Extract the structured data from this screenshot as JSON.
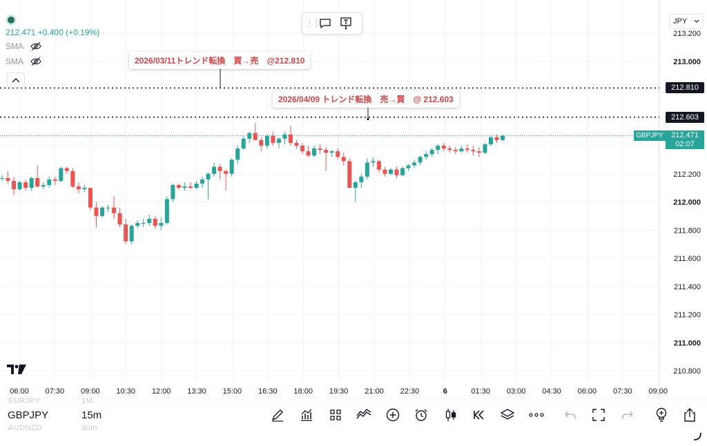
{
  "symbol": "GBPJPY",
  "header": {
    "price_change": "212.471 +0.400 (+0.19%)",
    "indicators": [
      {
        "label": "SMA",
        "icon": "eye-off-icon"
      },
      {
        "label": "SMA",
        "icon": "eye-off-icon"
      }
    ]
  },
  "currency": {
    "value": "JPY"
  },
  "annotations": [
    {
      "text": "2026/03/11トレンド転換　買→売　@212.810",
      "price": 212.81
    },
    {
      "text": "2026/04/09 トレンド転換　売→買　@ 212.603",
      "price": 212.603
    }
  ],
  "price_tags": {
    "line1": "212.810",
    "line2": "212.603",
    "current_symbol": "GBPJPY",
    "current_price": "212.471",
    "countdown": "02:07"
  },
  "chart_data": {
    "type": "candlestick",
    "interval": "15m",
    "y_ticks": [
      "213.200",
      "213.000",
      "212.800",
      "212.600",
      "212.400",
      "212.200",
      "212.000",
      "211.800",
      "211.600",
      "211.400",
      "211.200",
      "211.000",
      "210.800"
    ],
    "y_bold": [
      "213.000",
      "212.000",
      "211.000"
    ],
    "ylim": [
      210.76,
      213.29
    ],
    "x_ticks": [
      "06:00",
      "07:30",
      "09:00",
      "10:30",
      "12:00",
      "13:30",
      "15:00",
      "16:30",
      "18:00",
      "19:30",
      "21:00",
      "22:30",
      "6",
      "01:30",
      "03:00",
      "04:30",
      "06:00",
      "07:30",
      "09:00"
    ],
    "x_bold": [
      "6"
    ],
    "candles": [
      [
        212.17,
        212.19,
        212.15,
        212.17
      ],
      [
        212.17,
        212.22,
        212.13,
        212.15
      ],
      [
        212.15,
        212.18,
        212.05,
        212.09
      ],
      [
        212.09,
        212.15,
        212.08,
        212.14
      ],
      [
        212.14,
        212.16,
        212.08,
        212.1
      ],
      [
        212.1,
        212.18,
        212.08,
        212.17
      ],
      [
        212.17,
        212.26,
        212.1,
        212.11
      ],
      [
        212.11,
        212.14,
        212.09,
        212.12
      ],
      [
        212.12,
        212.18,
        212.1,
        212.16
      ],
      [
        212.16,
        212.18,
        212.12,
        212.15
      ],
      [
        212.15,
        212.25,
        212.14,
        212.24
      ],
      [
        212.24,
        212.25,
        212.2,
        212.22
      ],
      [
        212.22,
        212.24,
        212.1,
        212.11
      ],
      [
        212.11,
        212.14,
        212.06,
        212.09
      ],
      [
        212.09,
        212.12,
        212.07,
        212.1
      ],
      [
        212.1,
        212.1,
        211.94,
        211.96
      ],
      [
        211.96,
        212.0,
        211.82,
        211.9
      ],
      [
        211.9,
        211.97,
        211.89,
        211.96
      ],
      [
        211.96,
        211.98,
        211.93,
        211.96
      ],
      [
        211.96,
        212.04,
        211.88,
        211.92
      ],
      [
        211.92,
        211.96,
        211.82,
        211.84
      ],
      [
        211.84,
        211.88,
        211.7,
        211.72
      ],
      [
        211.72,
        211.84,
        211.7,
        211.83
      ],
      [
        211.83,
        211.87,
        211.81,
        211.85
      ],
      [
        211.85,
        211.88,
        211.82,
        211.85
      ],
      [
        211.85,
        211.91,
        211.83,
        211.88
      ],
      [
        211.88,
        211.9,
        211.81,
        211.83
      ],
      [
        211.83,
        211.89,
        211.8,
        211.85
      ],
      [
        211.85,
        212.04,
        211.84,
        212.02
      ],
      [
        212.02,
        212.13,
        212.0,
        212.12
      ],
      [
        212.12,
        212.13,
        212.09,
        212.1
      ],
      [
        212.1,
        212.14,
        212.08,
        212.11
      ],
      [
        212.11,
        212.14,
        212.09,
        212.1
      ],
      [
        212.1,
        212.15,
        212.09,
        212.13
      ],
      [
        212.13,
        212.18,
        212.1,
        212.16
      ],
      [
        212.16,
        212.21,
        212.02,
        212.2
      ],
      [
        212.2,
        212.28,
        212.18,
        212.25
      ],
      [
        212.25,
        212.27,
        212.16,
        212.22
      ],
      [
        212.22,
        212.23,
        212.08,
        212.2
      ],
      [
        212.2,
        212.31,
        212.18,
        212.3
      ],
      [
        212.3,
        212.4,
        212.27,
        212.38
      ],
      [
        212.38,
        212.47,
        212.37,
        212.45
      ],
      [
        212.45,
        212.5,
        212.42,
        212.49
      ],
      [
        212.49,
        212.56,
        212.44,
        212.44
      ],
      [
        212.44,
        212.46,
        212.36,
        212.4
      ],
      [
        212.4,
        212.48,
        212.38,
        212.47
      ],
      [
        212.47,
        212.5,
        212.4,
        212.42
      ],
      [
        212.42,
        212.46,
        212.38,
        212.45
      ],
      [
        212.45,
        212.5,
        212.41,
        212.48
      ],
      [
        212.48,
        212.54,
        212.4,
        212.42
      ],
      [
        212.42,
        212.44,
        212.38,
        212.4
      ],
      [
        212.4,
        212.42,
        212.34,
        212.36
      ],
      [
        212.36,
        212.4,
        212.32,
        212.33
      ],
      [
        212.33,
        212.4,
        212.32,
        212.38
      ],
      [
        212.38,
        212.41,
        212.34,
        212.37
      ],
      [
        212.37,
        212.39,
        212.22,
        212.35
      ],
      [
        212.35,
        212.37,
        212.32,
        212.36
      ],
      [
        212.36,
        212.38,
        212.3,
        212.32
      ],
      [
        212.32,
        212.35,
        212.26,
        212.29
      ],
      [
        212.29,
        212.31,
        212.1,
        212.1
      ],
      [
        212.1,
        212.15,
        212.0,
        212.14
      ],
      [
        212.14,
        212.2,
        212.1,
        212.18
      ],
      [
        212.18,
        212.31,
        212.16,
        212.28
      ],
      [
        212.28,
        212.32,
        212.25,
        212.29
      ],
      [
        212.29,
        212.3,
        212.21,
        212.23
      ],
      [
        212.23,
        212.25,
        212.18,
        212.2
      ],
      [
        212.2,
        212.24,
        212.19,
        212.23
      ],
      [
        212.23,
        212.25,
        212.17,
        212.19
      ],
      [
        212.19,
        212.25,
        212.18,
        212.24
      ],
      [
        212.24,
        212.27,
        212.22,
        212.26
      ],
      [
        212.26,
        212.3,
        212.24,
        212.28
      ],
      [
        212.28,
        212.33,
        212.26,
        212.32
      ],
      [
        212.32,
        212.36,
        212.3,
        212.34
      ],
      [
        212.34,
        212.38,
        212.32,
        212.37
      ],
      [
        212.37,
        212.41,
        212.34,
        212.4
      ],
      [
        212.4,
        212.42,
        212.36,
        212.38
      ],
      [
        212.38,
        212.4,
        212.35,
        212.37
      ],
      [
        212.37,
        212.39,
        212.34,
        212.36
      ],
      [
        212.36,
        212.4,
        212.35,
        212.38
      ],
      [
        212.38,
        212.41,
        212.35,
        212.37
      ],
      [
        212.37,
        212.4,
        212.33,
        212.36
      ],
      [
        212.36,
        212.39,
        212.32,
        212.35
      ],
      [
        212.35,
        212.42,
        212.34,
        212.41
      ],
      [
        212.41,
        212.47,
        212.4,
        212.46
      ],
      [
        212.46,
        212.48,
        212.42,
        212.44
      ],
      [
        212.44,
        212.48,
        212.43,
        212.47
      ]
    ]
  },
  "bottom": {
    "symbols": {
      "prev": "EURJPY",
      "current": "GBPJPY",
      "next": "AUDNZD"
    },
    "intervals": {
      "prev": "1M",
      "current": "15m",
      "next": "30m"
    }
  }
}
